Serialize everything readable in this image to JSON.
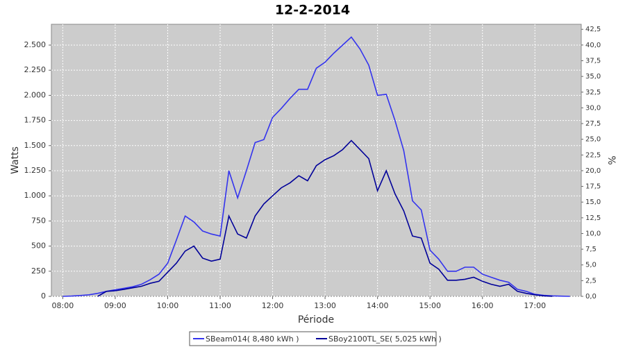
{
  "chart_data": {
    "type": "line",
    "title": "12-2-2014",
    "x_label": "Période",
    "y_label": "Watts",
    "y2_label": "%",
    "x": [
      "08:00",
      "08:10",
      "08:20",
      "08:30",
      "08:40",
      "08:50",
      "09:00",
      "09:10",
      "09:20",
      "09:30",
      "09:40",
      "09:50",
      "10:00",
      "10:10",
      "10:20",
      "10:30",
      "10:40",
      "10:50",
      "11:00",
      "11:10",
      "11:20",
      "11:30",
      "11:40",
      "11:50",
      "12:00",
      "12:10",
      "12:20",
      "12:30",
      "12:40",
      "12:50",
      "13:00",
      "13:10",
      "13:20",
      "13:30",
      "13:40",
      "13:50",
      "14:00",
      "14:10",
      "14:20",
      "14:30",
      "14:40",
      "14:50",
      "15:00",
      "15:10",
      "15:20",
      "15:30",
      "15:40",
      "15:50",
      "16:00",
      "16:10",
      "16:20",
      "16:30",
      "16:40",
      "16:50",
      "17:00",
      "17:10",
      "17:20",
      "17:30",
      "17:40"
    ],
    "series": [
      {
        "name": "SBeam014( 8,480 kWh )",
        "color": "#3333ee",
        "values": [
          0,
          3,
          8,
          15,
          30,
          50,
          65,
          80,
          95,
          120,
          165,
          220,
          330,
          560,
          800,
          740,
          650,
          620,
          600,
          1250,
          980,
          1250,
          1530,
          1560,
          1780,
          1870,
          1970,
          2060,
          2060,
          2270,
          2330,
          2420,
          2500,
          2580,
          2460,
          2300,
          2000,
          2010,
          1750,
          1450,
          950,
          860,
          460,
          370,
          250,
          250,
          290,
          290,
          220,
          190,
          160,
          140,
          70,
          50,
          20,
          10,
          5,
          2,
          0
        ]
      },
      {
        "name": "SBoy2100TL_SE( 5,025 kWh )",
        "color": "#000099",
        "values": [
          null,
          null,
          null,
          null,
          0,
          50,
          55,
          70,
          85,
          100,
          130,
          150,
          240,
          330,
          450,
          500,
          380,
          350,
          370,
          800,
          620,
          580,
          800,
          920,
          1000,
          1080,
          1130,
          1200,
          1150,
          1300,
          1360,
          1400,
          1460,
          1550,
          1460,
          1370,
          1050,
          1250,
          1020,
          850,
          600,
          580,
          330,
          270,
          160,
          160,
          170,
          190,
          150,
          120,
          100,
          120,
          50,
          30,
          15,
          5,
          0,
          null,
          null
        ]
      }
    ],
    "xlim": [
      "07:47",
      "17:53"
    ],
    "xticks": [
      "08:00",
      "09:00",
      "10:00",
      "11:00",
      "12:00",
      "13:00",
      "14:00",
      "15:00",
      "16:00",
      "17:00"
    ],
    "ylim": [
      0,
      2707
    ],
    "yticks": [
      0,
      250,
      500,
      750,
      {
        "value": 1000,
        "label": "1.000"
      },
      {
        "value": 1250,
        "label": "1.250"
      },
      {
        "value": 1500,
        "label": "1.500"
      },
      {
        "value": 1750,
        "label": "1.750"
      },
      {
        "value": 2000,
        "label": "2.000"
      },
      {
        "value": 2250,
        "label": "2.250"
      },
      {
        "value": 2500,
        "label": "2.500"
      }
    ],
    "y2lim": [
      0,
      43.3
    ],
    "y2ticks": [
      {
        "value": 0,
        "label": "0,0"
      },
      {
        "value": 2.5,
        "label": "2,5"
      },
      {
        "value": 5,
        "label": "5,0"
      },
      {
        "value": 7.5,
        "label": "7,5"
      },
      {
        "value": 10,
        "label": "10,0"
      },
      {
        "value": 12.5,
        "label": "12,5"
      },
      {
        "value": 15,
        "label": "15,0"
      },
      {
        "value": 17.5,
        "label": "17,5"
      },
      {
        "value": 20,
        "label": "20,0"
      },
      {
        "value": 22.5,
        "label": "22,5"
      },
      {
        "value": 25,
        "label": "25,0"
      },
      {
        "value": 27.5,
        "label": "27,5"
      },
      {
        "value": 30,
        "label": "30,0"
      },
      {
        "value": 32.5,
        "label": "32,5"
      },
      {
        "value": 35,
        "label": "35,0"
      },
      {
        "value": 37.5,
        "label": "37,5"
      },
      {
        "value": 40,
        "label": "40,0"
      },
      {
        "value": 42.5,
        "label": "42,5"
      }
    ],
    "grid": true
  }
}
